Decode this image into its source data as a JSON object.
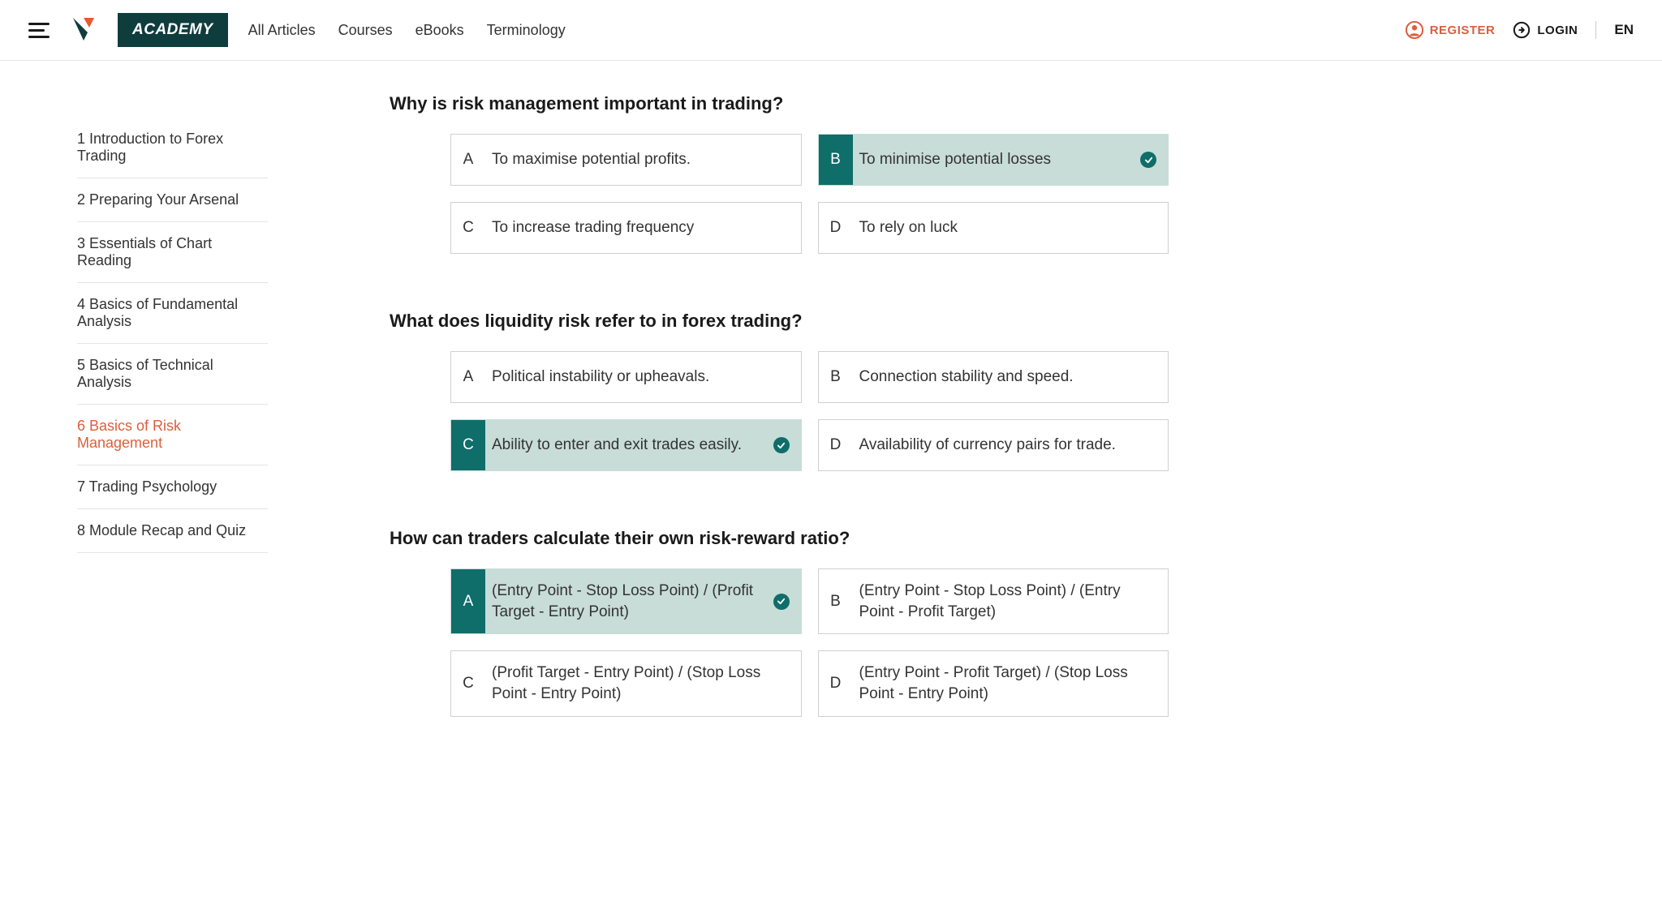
{
  "header": {
    "academy_badge": "ACADEMY",
    "nav": {
      "all_articles": "All Articles",
      "courses": "Courses",
      "ebooks": "eBooks",
      "terminology": "Terminology"
    },
    "register": "REGISTER",
    "login": "LOGIN",
    "language": "EN"
  },
  "colors": {
    "accent_orange": "#d9603e",
    "accent_teal": "#0f6d6a",
    "correct_bg": "#c8ddd8",
    "badge_bg": "#0f3d3e",
    "border": "#d0d0d0",
    "text": "#333333"
  },
  "sidebar": {
    "items": [
      {
        "label": "1 Introduction to Forex Trading",
        "active": false
      },
      {
        "label": "2 Preparing Your Arsenal",
        "active": false
      },
      {
        "label": "3 Essentials of Chart Reading",
        "active": false
      },
      {
        "label": "4 Basics of Fundamental Analysis",
        "active": false
      },
      {
        "label": "5 Basics of Technical Analysis",
        "active": false
      },
      {
        "label": "6 Basics of Risk Management",
        "active": true
      },
      {
        "label": "7 Trading Psychology",
        "active": false
      },
      {
        "label": "8 Module Recap and Quiz",
        "active": false
      }
    ]
  },
  "quiz": {
    "questions": [
      {
        "title": "Why is risk management important in trading?",
        "options": [
          {
            "letter": "A",
            "text": "To maximise potential profits.",
            "correct": false
          },
          {
            "letter": "B",
            "text": "To minimise potential losses",
            "correct": true
          },
          {
            "letter": "C",
            "text": "To increase trading frequency",
            "correct": false
          },
          {
            "letter": "D",
            "text": "To rely on luck",
            "correct": false
          }
        ]
      },
      {
        "title": "What does liquidity risk refer to in forex trading?",
        "options": [
          {
            "letter": "A",
            "text": "Political instability or upheavals.",
            "correct": false
          },
          {
            "letter": "B",
            "text": "Connection stability and speed.",
            "correct": false
          },
          {
            "letter": "C",
            "text": "Ability to enter and exit trades easily.",
            "correct": true
          },
          {
            "letter": "D",
            "text": "Availability of currency pairs for trade.",
            "correct": false
          }
        ]
      },
      {
        "title": "How can traders calculate their own risk-reward ratio?",
        "options": [
          {
            "letter": "A",
            "text": "(Entry Point - Stop Loss Point) / (Profit Target - Entry Point)",
            "correct": true
          },
          {
            "letter": "B",
            "text": "(Entry Point - Stop Loss Point) / (Entry Point - Profit Target)",
            "correct": false
          },
          {
            "letter": "C",
            "text": "(Profit Target - Entry Point) / (Stop Loss Point - Entry Point)",
            "correct": false
          },
          {
            "letter": "D",
            "text": "(Entry Point - Profit Target) / (Stop Loss Point - Entry Point)",
            "correct": false
          }
        ]
      }
    ]
  }
}
